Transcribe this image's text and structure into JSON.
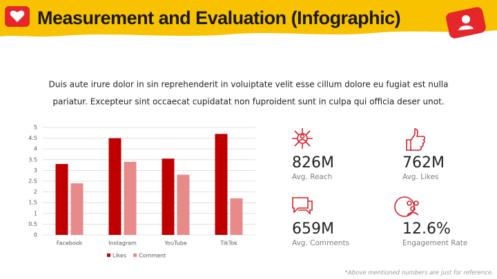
{
  "header": {
    "title": "Measurement and Evaluation (Infographic)"
  },
  "body": {
    "lines": [
      "Duis aute irure dolor in sin reprehenderit in voluiptate velit esse cillum dolore eu fugiat est nulla",
      "pariatur. Excepteur sint occaecat cupidatat non fuproident sunt in culpa qui officia deser unot."
    ]
  },
  "chart_data": {
    "type": "bar",
    "categories": [
      "Facebook",
      "Instagram",
      "YouTube",
      "TikTok"
    ],
    "series": [
      {
        "name": "Likes",
        "color": "#c00000",
        "values": [
          3.3,
          4.5,
          3.55,
          4.7
        ]
      },
      {
        "name": "Comment",
        "color": "#e88a8a",
        "values": [
          2.4,
          3.4,
          2.8,
          1.7
        ]
      }
    ],
    "ylim": [
      0,
      5
    ],
    "yticks": [
      0,
      0.5,
      1,
      1.5,
      2,
      2.5,
      3,
      3.5,
      4,
      4.5,
      5
    ],
    "grid": true,
    "legend": "bottom"
  },
  "stats": [
    {
      "value": "826M",
      "label": "Avg. Reach"
    },
    {
      "value": "762M",
      "label": "Avg. Likes"
    },
    {
      "value": "659M",
      "label": "Avg. Comments"
    },
    {
      "value": "12.6%",
      "label": "Engagement Rate"
    }
  ],
  "footnote": "*Above mentioned numbers are just for reference."
}
